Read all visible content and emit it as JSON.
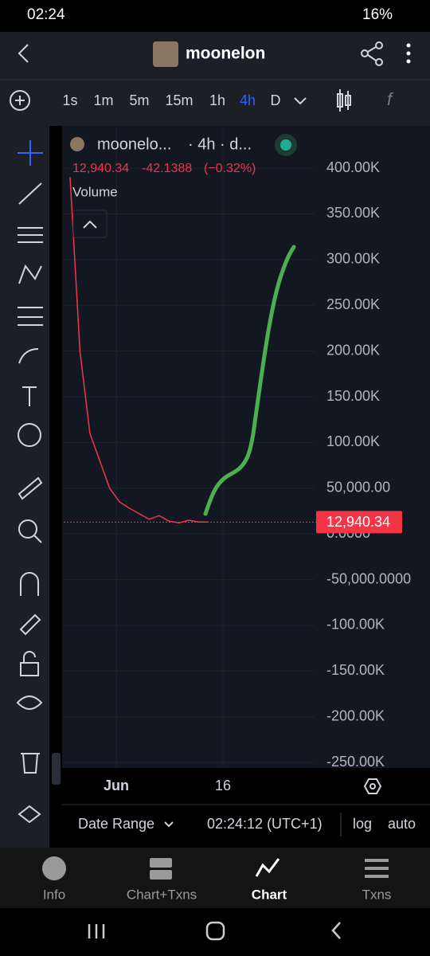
{
  "status_bar": {
    "time": "02:24",
    "battery": "16%"
  },
  "header": {
    "title": "moonelon"
  },
  "timeframes": [
    "1s",
    "1m",
    "5m",
    "15m",
    "1h",
    "4h",
    "D"
  ],
  "chart_data": {
    "type": "line",
    "legend": {
      "symbol": "moonelo...",
      "interval": "· 4h · d...",
      "price": "12,940.34",
      "change": "-42.1388",
      "change_pct": "(−0.32%)",
      "indicator": "Volume"
    },
    "values": [
      390000,
      200000,
      110000,
      80000,
      50000,
      35000,
      28000,
      22000,
      16000,
      20000,
      14000,
      12000,
      15000,
      13000,
      12940.34
    ],
    "color": "#f23645",
    "last_price": {
      "value": 12940.34,
      "label": "12,940.34"
    },
    "ylim": [
      -256000,
      444500
    ],
    "yticks": [
      {
        "value": 400000,
        "label": "400.00K"
      },
      {
        "value": 350000,
        "label": "350.00K"
      },
      {
        "value": 300000,
        "label": "300.00K"
      },
      {
        "value": 250000,
        "label": "250.00K"
      },
      {
        "value": 200000,
        "label": "200.00K"
      },
      {
        "value": 150000,
        "label": "150.00K"
      },
      {
        "value": 100000,
        "label": "100.00K"
      },
      {
        "value": 50000,
        "label": "50,000.00"
      },
      {
        "value": 0,
        "label": "0.0000"
      },
      {
        "value": -50000,
        "label": "-50,000.0000"
      },
      {
        "value": -100000,
        "label": "-100.00K"
      },
      {
        "value": -150000,
        "label": "-150.00K"
      },
      {
        "value": -200000,
        "label": "-200.00K"
      },
      {
        "value": -250000,
        "label": "-250.00K"
      }
    ],
    "x_labels": [
      "Jun",
      "16"
    ],
    "grid": true
  },
  "bottom_bar": {
    "range": "Date Range",
    "clock": "02:24:12 (UTC+1)",
    "log": "log",
    "auto": "auto"
  },
  "nav": [
    "Info",
    "Chart+Txns",
    "Chart",
    "Txns"
  ]
}
